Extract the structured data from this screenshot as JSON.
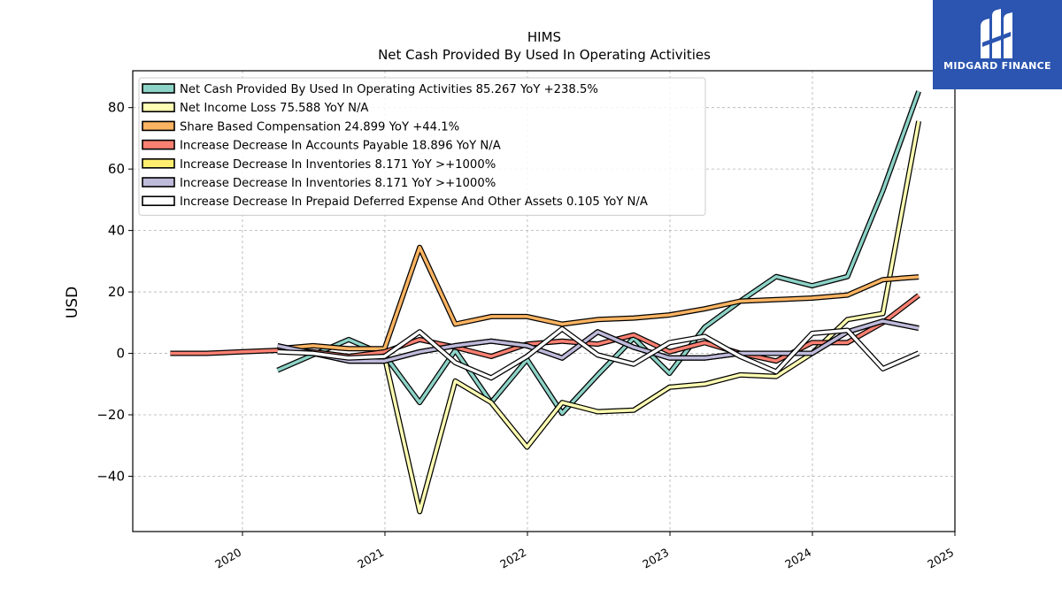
{
  "logo": {
    "text": "MIDGARD FINANCE",
    "bg_color": "#2b55b0"
  },
  "chart_data": {
    "type": "line",
    "title": "HIMS",
    "subtitle": "Net Cash Provided By Used In Operating Activities",
    "xlabel": "",
    "ylabel": "USD",
    "x_ticks": [
      "2020",
      "2021",
      "2022",
      "2023",
      "2024",
      "2025"
    ],
    "y_ticks": [
      -40,
      -20,
      0,
      20,
      40,
      60,
      80
    ],
    "xlim": [
      2019.23,
      2025.0
    ],
    "ylim": [
      -58,
      92
    ],
    "grid": true,
    "legend_position": "top-left",
    "series": [
      {
        "name": "Net Cash Provided By Used In Operating Activities  85.267 YoY +238.5%",
        "color": "#8dd3c7",
        "x": [
          "2020-03-31",
          "2020-06-30",
          "2020-09-30",
          "2020-12-31",
          "2021-03-31",
          "2021-06-30",
          "2021-09-30",
          "2021-12-31",
          "2022-03-31",
          "2022-06-30",
          "2022-09-30",
          "2022-12-31",
          "2023-03-31",
          "2023-06-30",
          "2023-09-30",
          "2023-12-31",
          "2024-03-31",
          "2024-06-30",
          "2024-09-30"
        ],
        "y": [
          -5.5,
          -0.5,
          4.5,
          -0.5,
          -16,
          1,
          -16,
          -2,
          -19.5,
          -7,
          5,
          -6.5,
          8.5,
          17,
          25,
          22,
          25,
          53,
          85.3
        ]
      },
      {
        "name": "Net Income Loss  75.588 YoY N/A",
        "color": "#ffffb3",
        "x": [
          "2020-03-31",
          "2020-06-30",
          "2020-09-30",
          "2020-12-31",
          "2021-03-31",
          "2021-06-30",
          "2021-09-30",
          "2021-12-31",
          "2022-03-31",
          "2022-06-30",
          "2022-09-30",
          "2022-12-31",
          "2023-03-31",
          "2023-06-30",
          "2023-09-30",
          "2023-12-31",
          "2024-03-31",
          "2024-06-30",
          "2024-09-30"
        ],
        "y": [
          1,
          0,
          -2,
          -1,
          -51.5,
          -9,
          -16,
          -30.5,
          -16,
          -19,
          -18.5,
          -11,
          -10,
          -7,
          -7.5,
          0,
          11,
          13,
          75.6
        ]
      },
      {
        "name": "Share Based Compensation  24.899 YoY +44.1%",
        "color": "#fdb462",
        "x": [
          "2020-03-31",
          "2020-06-30",
          "2020-09-30",
          "2020-12-31",
          "2021-03-31",
          "2021-06-30",
          "2021-09-30",
          "2021-12-31",
          "2022-03-31",
          "2022-06-30",
          "2022-09-30",
          "2022-12-31",
          "2023-03-31",
          "2023-06-30",
          "2023-09-30",
          "2023-12-31",
          "2024-03-31",
          "2024-06-30",
          "2024-09-30"
        ],
        "y": [
          1.5,
          2.5,
          1.5,
          1.5,
          34.5,
          9.5,
          12,
          12,
          9.5,
          11,
          11.5,
          12.5,
          14.5,
          17,
          17.5,
          18,
          19,
          24,
          24.9
        ]
      },
      {
        "name": "Increase Decrease In Accounts Payable  18.896 YoY N/A",
        "color": "#fb8072",
        "x": [
          "2019-06-30",
          "2019-09-30",
          "2019-12-31",
          "2020-03-31",
          "2020-06-30",
          "2020-09-30",
          "2020-12-31",
          "2021-03-31",
          "2021-06-30",
          "2021-09-30",
          "2021-12-31",
          "2022-03-31",
          "2022-06-30",
          "2022-09-30",
          "2022-12-31",
          "2023-03-31",
          "2023-06-30",
          "2023-09-30",
          "2023-12-31",
          "2024-03-31",
          "2024-06-30",
          "2024-09-30"
        ],
        "y": [
          0,
          0,
          0.5,
          1,
          0.5,
          -1,
          0.5,
          4.5,
          2,
          -1,
          3,
          4,
          3,
          6,
          0.5,
          3.5,
          0,
          -2.5,
          3.5,
          3.5,
          10,
          18.9
        ]
      },
      {
        "name": "Increase Decrease In Inventories  8.171 YoY >+1000%",
        "color": "#ffed6f",
        "x": [
          "2020-03-31",
          "2020-06-30",
          "2020-09-30",
          "2020-12-31",
          "2021-03-31",
          "2021-06-30",
          "2021-09-30",
          "2021-12-31",
          "2022-03-31",
          "2022-06-30",
          "2022-09-30",
          "2022-12-31",
          "2023-03-31",
          "2023-06-30",
          "2023-09-30",
          "2023-12-31",
          "2024-03-31",
          "2024-06-30",
          "2024-09-30"
        ],
        "y": [
          2.5,
          0,
          -2.5,
          -2.5,
          0.5,
          2.5,
          4,
          2.5,
          -1.5,
          7,
          2,
          -1.5,
          -1.5,
          0,
          0,
          0,
          7,
          10.5,
          8.2
        ]
      },
      {
        "name": "Increase Decrease In Inventories  8.171 YoY >+1000%",
        "color": "#bebada",
        "x": [
          "2020-03-31",
          "2020-06-30",
          "2020-09-30",
          "2020-12-31",
          "2021-03-31",
          "2021-06-30",
          "2021-09-30",
          "2021-12-31",
          "2022-03-31",
          "2022-06-30",
          "2022-09-30",
          "2022-12-31",
          "2023-03-31",
          "2023-06-30",
          "2023-09-30",
          "2023-12-31",
          "2024-03-31",
          "2024-06-30",
          "2024-09-30"
        ],
        "y": [
          2.5,
          0,
          -2.5,
          -2.5,
          0.5,
          2.5,
          4,
          2.5,
          -1.5,
          7,
          2,
          -1.5,
          -1.5,
          0,
          0,
          0,
          7,
          10.5,
          8.2
        ]
      },
      {
        "name": "Increase Decrease In Prepaid Deferred Expense And Other Assets  0.105 YoY N/A",
        "color": "#ffffff",
        "x": [
          "2020-03-31",
          "2020-06-30",
          "2020-09-30",
          "2020-12-31",
          "2021-03-31",
          "2021-06-30",
          "2021-09-30",
          "2021-12-31",
          "2022-03-31",
          "2022-06-30",
          "2022-09-30",
          "2022-12-31",
          "2023-03-31",
          "2023-06-30",
          "2023-09-30",
          "2023-12-31",
          "2024-03-31",
          "2024-06-30",
          "2024-09-30"
        ],
        "y": [
          0.5,
          0,
          -1.5,
          -1,
          7,
          -3,
          -8,
          -1,
          8,
          -0.5,
          -3.5,
          3.5,
          5.5,
          -1,
          -6,
          6.5,
          7.5,
          -5,
          0.1
        ]
      }
    ]
  }
}
